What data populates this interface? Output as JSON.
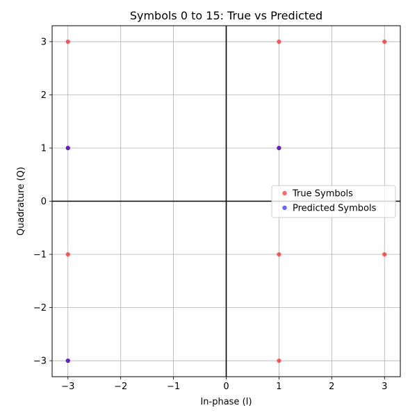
{
  "chart_data": {
    "type": "scatter",
    "title": "Symbols 0 to 15: True vs Predicted",
    "xlabel": "In-phase (I)",
    "ylabel": "Quadrature (Q)",
    "xlim": [
      -3.3,
      3.3
    ],
    "ylim": [
      -3.3,
      3.3
    ],
    "xticks": [
      -3,
      -2,
      -1,
      0,
      1,
      2,
      3
    ],
    "yticks": [
      -3,
      -2,
      -1,
      0,
      1,
      2,
      3
    ],
    "xtick_labels": [
      "−3",
      "−2",
      "−1",
      "0",
      "1",
      "2",
      "3"
    ],
    "ytick_labels": [
      "−3",
      "−2",
      "−1",
      "0",
      "1",
      "2",
      "3"
    ],
    "grid": true,
    "legend_position": "center-right",
    "series": [
      {
        "name": "True Symbols",
        "color": "#ff0000",
        "alpha": 0.6,
        "points": [
          [
            -3,
            3
          ],
          [
            1,
            3
          ],
          [
            3,
            3
          ],
          [
            -3,
            1
          ],
          [
            1,
            1
          ],
          [
            -3,
            -1
          ],
          [
            1,
            -1
          ],
          [
            3,
            -1
          ],
          [
            -3,
            -3
          ],
          [
            1,
            -3
          ]
        ]
      },
      {
        "name": "Predicted Symbols",
        "color": "#0000ff",
        "alpha": 0.6,
        "points": [
          [
            -3,
            1
          ],
          [
            1,
            1
          ],
          [
            -3,
            -3
          ]
        ]
      }
    ]
  }
}
